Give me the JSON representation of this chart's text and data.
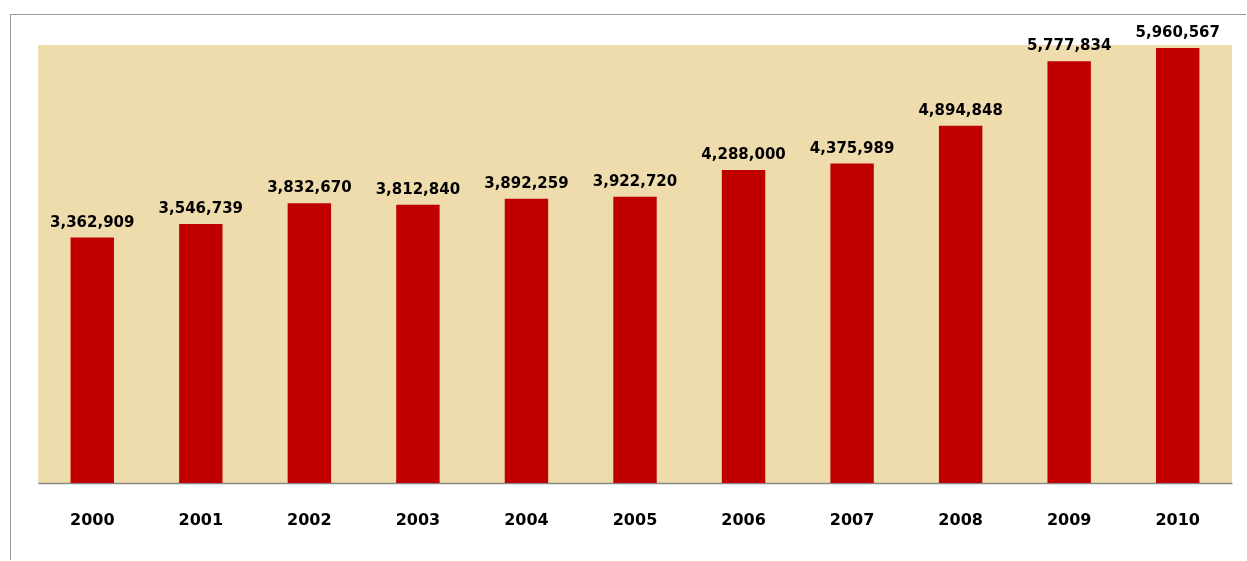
{
  "chart_data": {
    "type": "bar",
    "categories": [
      "2000",
      "2001",
      "2002",
      "2003",
      "2004",
      "2005",
      "2006",
      "2007",
      "2008",
      "2009",
      "2010"
    ],
    "values": [
      3362909,
      3546739,
      3832670,
      3812840,
      3892259,
      3922720,
      4288000,
      4375989,
      4894848,
      5777834,
      5960567
    ],
    "value_labels": [
      "3,362,909",
      "3,546,739",
      "3,832,670",
      "3,812,840",
      "3,892,259",
      "3,922,720",
      "4,288,000",
      "4,375,989",
      "4,894,848",
      "5,777,834",
      "5,960,567"
    ],
    "color": "#c00000"
  }
}
